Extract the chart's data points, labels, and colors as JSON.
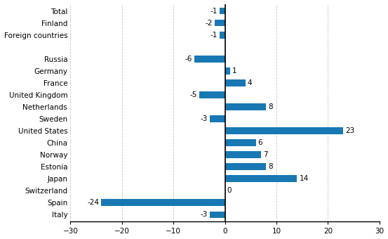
{
  "categories": [
    "Total",
    "Finland",
    "Foreign countries",
    "",
    "Russia",
    "Germany",
    "France",
    "United Kingdom",
    "Netherlands",
    "Sweden",
    "United States",
    "China",
    "Norway",
    "Estonia",
    "Japan",
    "Switzerland",
    "Spain",
    "Italy"
  ],
  "values": [
    -1,
    -2,
    -1,
    null,
    -6,
    1,
    4,
    -5,
    8,
    -3,
    23,
    6,
    7,
    8,
    14,
    0,
    -24,
    -3
  ],
  "bar_color": "#1878b4",
  "xlim": [
    -30,
    30
  ],
  "xticks": [
    -30,
    -20,
    -10,
    0,
    10,
    20,
    30
  ],
  "bg_color": "#ffffff",
  "grid_color": "#c8c8c8",
  "label_fontsize": 7.5,
  "value_fontsize": 7.5
}
